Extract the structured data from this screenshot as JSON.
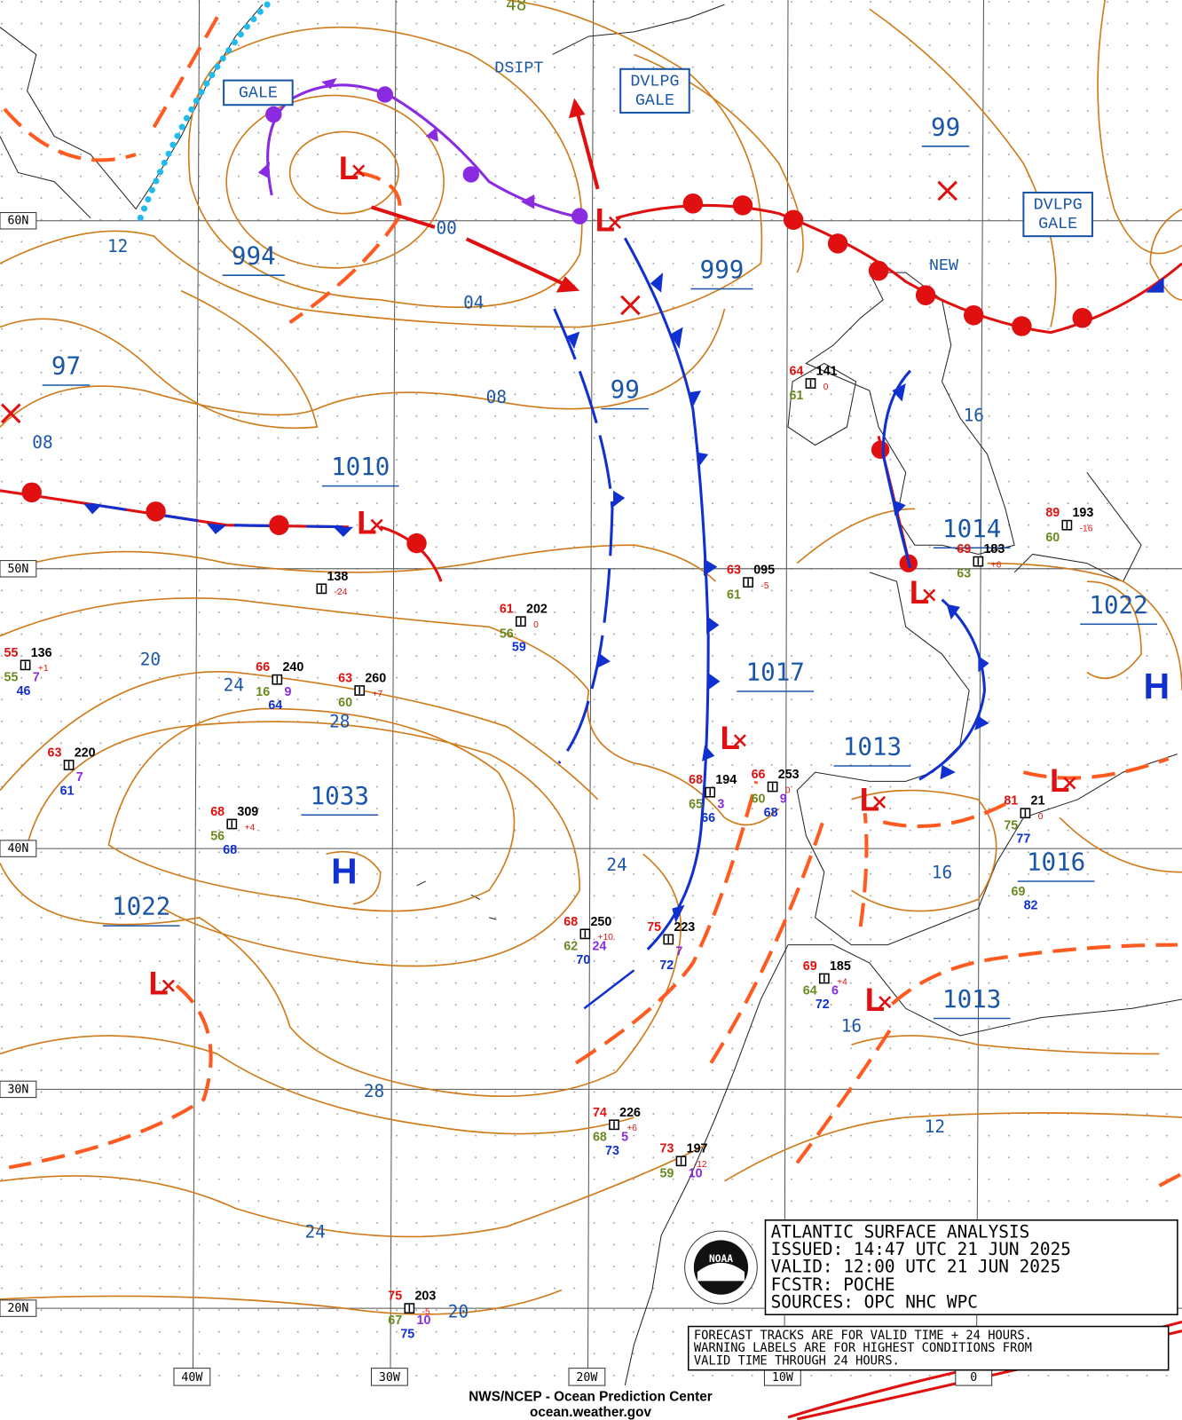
{
  "info_box": {
    "title": "ATLANTIC SURFACE ANALYSIS",
    "issued": "ISSUED:  14:47 UTC 21 JUN 2025",
    "valid": "VALID:  12:00 UTC 21 JUN 2025",
    "forecaster": "FCSTR:  POCHE",
    "sources": "SOURCES: OPC NHC WPC"
  },
  "notes": [
    "FORECAST TRACKS ARE FOR VALID TIME + 24 HOURS.",
    "WARNING LABELS ARE FOR HIGHEST CONDITIONS FROM",
    "VALID TIME THROUGH 24 HOURS."
  ],
  "credits": [
    "NWS/NCEP - Ocean Prediction Center",
    "ocean.weather.gov"
  ],
  "logo": "NOAA",
  "latitudes": [
    "60N",
    "50N",
    "40N",
    "30N",
    "20N"
  ],
  "longitudes": [
    "40W",
    "30W",
    "20W",
    "10W",
    "0"
  ],
  "symbols": {
    "low": "L",
    "high": "H"
  },
  "warnings": [
    {
      "lines": [
        "GALE"
      ]
    },
    {
      "lines": [
        "DSIPT"
      ]
    },
    {
      "lines": [
        "DVLPG",
        "GALE"
      ]
    },
    {
      "lines": [
        "NEW"
      ]
    },
    {
      "lines": [
        "DVLPG",
        "GALE"
      ]
    }
  ],
  "pressure_centers": [
    "994",
    "999",
    "97",
    "99",
    "99",
    "1010",
    "1014",
    "1022",
    "1017",
    "1013",
    "1033",
    "1022",
    "1016",
    "1013"
  ],
  "isobar_labels": [
    "12",
    "00",
    "04",
    "08",
    "08",
    "16",
    "20",
    "24",
    "28",
    "24",
    "16",
    "16",
    "28",
    "12",
    "24",
    "20",
    "48"
  ],
  "stations": [
    {
      "temperature": "64",
      "pressure": "141",
      "tendency": "0",
      "dewpoint": "61"
    },
    {
      "temperature": "63",
      "pressure": "095",
      "tendency": "-5",
      "dewpoint": "61"
    },
    {
      "temperature": "61",
      "pressure": "202",
      "tendency": "0",
      "dewpoint": "56",
      "sea_temperature": "59"
    },
    {
      "pressure": "138",
      "tendency": "-24"
    },
    {
      "temperature": "55",
      "pressure": "136",
      "tendency": "+1",
      "dewpoint": "55",
      "wave_height": "7",
      "sea_temperature": "46"
    },
    {
      "temperature": "66",
      "pressure": "240",
      "dewpoint": "16",
      "wave_height": "9",
      "sea_temperature": "64"
    },
    {
      "temperature": "63",
      "pressure": "260",
      "tendency": "+7",
      "dewpoint": "60"
    },
    {
      "temperature": "63",
      "pressure": "220",
      "wave_height": "7",
      "sea_temperature": "61"
    },
    {
      "temperature": "68",
      "pressure": "309",
      "tendency": "+4",
      "dewpoint": "56",
      "sea_temperature": "68"
    },
    {
      "temperature": "68",
      "pressure": "250",
      "tendency": "+10",
      "dewpoint": "62",
      "wave_height": "24",
      "sea_temperature": "70"
    },
    {
      "temperature": "75",
      "pressure": "223",
      "wave_height": "7",
      "sea_temperature": "72"
    },
    {
      "temperature": "68",
      "pressure": "194",
      "dewpoint": "65",
      "wave_height": "3",
      "sea_temperature": "66"
    },
    {
      "temperature": "66",
      "pressure": "253",
      "tendency": "0",
      "dewpoint": "60",
      "wave_height": "9",
      "sea_temperature": "68"
    },
    {
      "temperature": "69",
      "pressure": "183",
      "tendency": "+6",
      "dewpoint": "63"
    },
    {
      "temperature": "89",
      "pressure": "193",
      "tendency": "-16",
      "dewpoint": "60"
    },
    {
      "temperature": "81",
      "pressure": "21",
      "tendency": "0",
      "dewpoint": "75",
      "sea_temperature": "77"
    },
    {
      "temperature": "69",
      "pressure": "185",
      "tendency": "+4",
      "dewpoint": "64",
      "wave_height": "6",
      "sea_temperature": "72"
    },
    {
      "temperature": "74",
      "pressure": "226",
      "tendency": "+6",
      "dewpoint": "68",
      "wave_height": "5",
      "sea_temperature": "73"
    },
    {
      "temperature": "73",
      "pressure": "197",
      "tendency": "-12",
      "dewpoint": "59",
      "wave_height": "10"
    },
    {
      "temperature": "75",
      "pressure": "203",
      "tendency": "-5",
      "dewpoint": "67",
      "wave_height": "10",
      "sea_temperature": "75"
    },
    {
      "dewpoint": "69",
      "sea_temperature": "82"
    }
  ]
}
